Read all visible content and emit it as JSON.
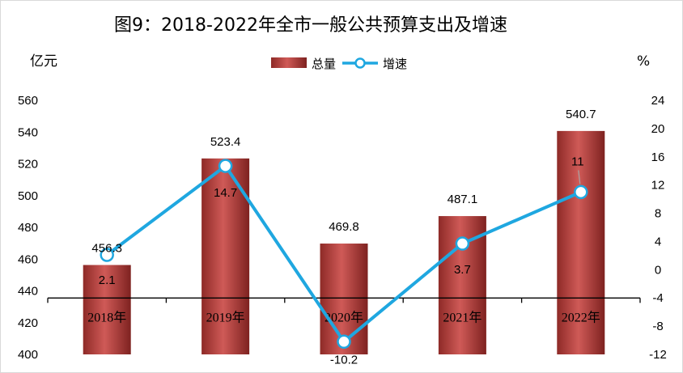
{
  "chart_data": {
    "type": "bar",
    "title": "图9：2018-2022年全市一般公共预算支出及增速",
    "ylabel": "亿元",
    "y2label": "%",
    "categories": [
      "2018年",
      "2019年",
      "2020年",
      "2021年",
      "2022年"
    ],
    "series": [
      {
        "name": "总量",
        "type": "bar",
        "axis": "left",
        "values": [
          456.3,
          523.4,
          469.8,
          487.1,
          540.7
        ],
        "labels": [
          "456.3",
          "523.4",
          "469.8",
          "487.1",
          "540.7"
        ],
        "color": "#c0504d"
      },
      {
        "name": "增速",
        "type": "line",
        "axis": "right",
        "values": [
          2.1,
          14.7,
          -10.2,
          3.7,
          11
        ],
        "labels": [
          "2.1",
          "14.7",
          "-10.2",
          "3.7",
          "11"
        ],
        "color": "#1fa7e0"
      }
    ],
    "ylim": [
      400,
      560
    ],
    "y_ticks": [
      "400",
      "420",
      "440",
      "460",
      "480",
      "500",
      "520",
      "540",
      "560"
    ],
    "y2lim": [
      -12,
      24
    ],
    "y2_ticks": [
      "-12",
      "-8",
      "-4",
      "0",
      "4",
      "8",
      "12",
      "16",
      "20",
      "24"
    ],
    "grid": false,
    "legend_position": "top-center"
  }
}
